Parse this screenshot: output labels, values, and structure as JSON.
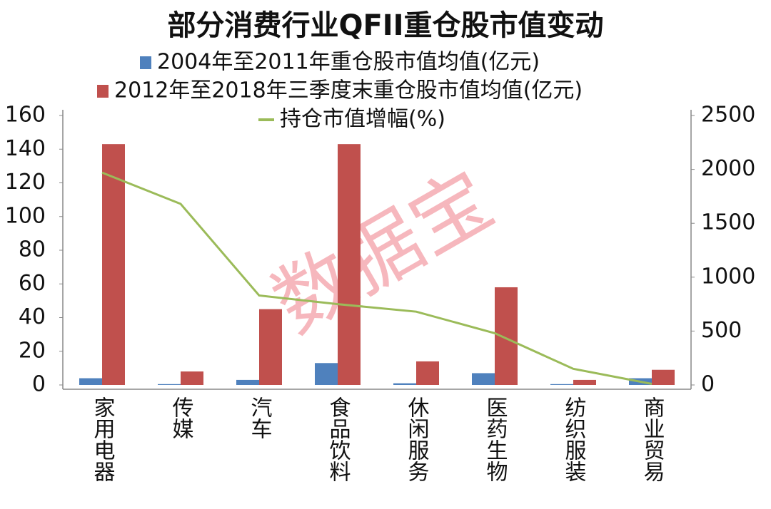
{
  "chart_data": {
    "type": "bar",
    "title": "部分消费行业QFII重仓股市值变动",
    "watermark": "数据宝",
    "categories": [
      "家用电器",
      "传媒",
      "汽车",
      "食品饮料",
      "休闲服务",
      "医药生物",
      "纺织服装",
      "商业贸易"
    ],
    "series": [
      {
        "name": "2004年至2011年重仓股市值均值(亿元)",
        "color": "#4f81bd",
        "values": [
          4,
          0.5,
          3,
          13,
          1,
          7,
          0.5,
          4
        ]
      },
      {
        "name": "2012年至2018年三季度末重仓股市值均值(亿元)",
        "color": "#c0504d",
        "values": [
          143,
          8,
          45,
          143,
          14,
          58,
          3,
          9
        ]
      },
      {
        "name": "持仓市值增幅(%)",
        "color": "#9bbb59",
        "type": "line",
        "axis": "y2",
        "values": [
          1970,
          1680,
          830,
          750,
          680,
          480,
          150,
          10
        ]
      }
    ],
    "ylim": [
      0,
      160
    ],
    "yticks": [
      0,
      20,
      40,
      60,
      80,
      100,
      120,
      140,
      160
    ],
    "y2lim": [
      0,
      2500
    ],
    "y2ticks": [
      0,
      500,
      1000,
      1500,
      2000,
      2500
    ]
  }
}
